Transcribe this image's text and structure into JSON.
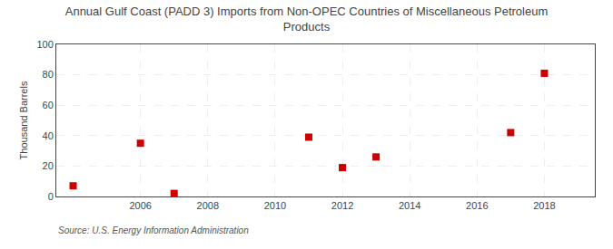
{
  "chart_data": {
    "type": "scatter",
    "title": "Annual Gulf Coast (PADD 3) Imports from Non-OPEC Countries of Miscellaneous Petroleum\nProducts",
    "ylabel": "Thousand Barrels",
    "annotation": "Source: U.S. Energy Information Administration",
    "x": [
      2004,
      2006,
      2007,
      2011,
      2012,
      2013,
      2017,
      2018
    ],
    "values": [
      7,
      35,
      2,
      39,
      19,
      26,
      42,
      81
    ],
    "color": "#cc0000",
    "marker": "square",
    "xlim": [
      2003.5,
      2019.5
    ],
    "xticks": [
      2006,
      2008,
      2010,
      2012,
      2014,
      2016,
      2018
    ],
    "ylim": [
      0,
      100
    ],
    "yticks": [
      0,
      20,
      40,
      60,
      80,
      100
    ],
    "grid": true
  }
}
